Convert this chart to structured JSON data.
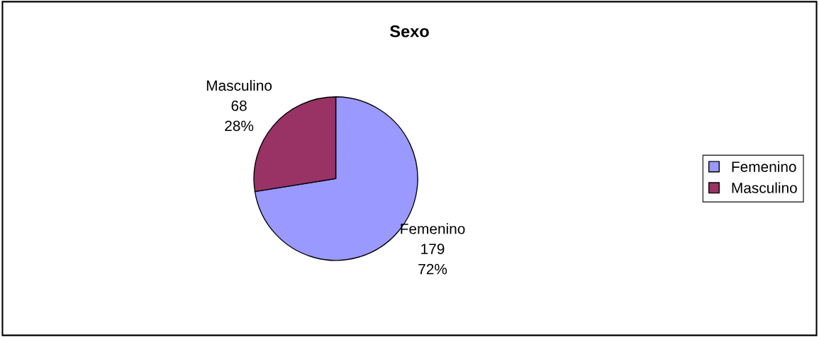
{
  "chart_data": {
    "type": "pie",
    "title": "Sexo",
    "categories": [
      "Femenino",
      "Masculino"
    ],
    "values": [
      179,
      68
    ],
    "value_labels": [
      "179\n72%",
      "68\n28%"
    ],
    "colors": [
      "#9999ff",
      "#993366"
    ],
    "legend": "right"
  }
}
